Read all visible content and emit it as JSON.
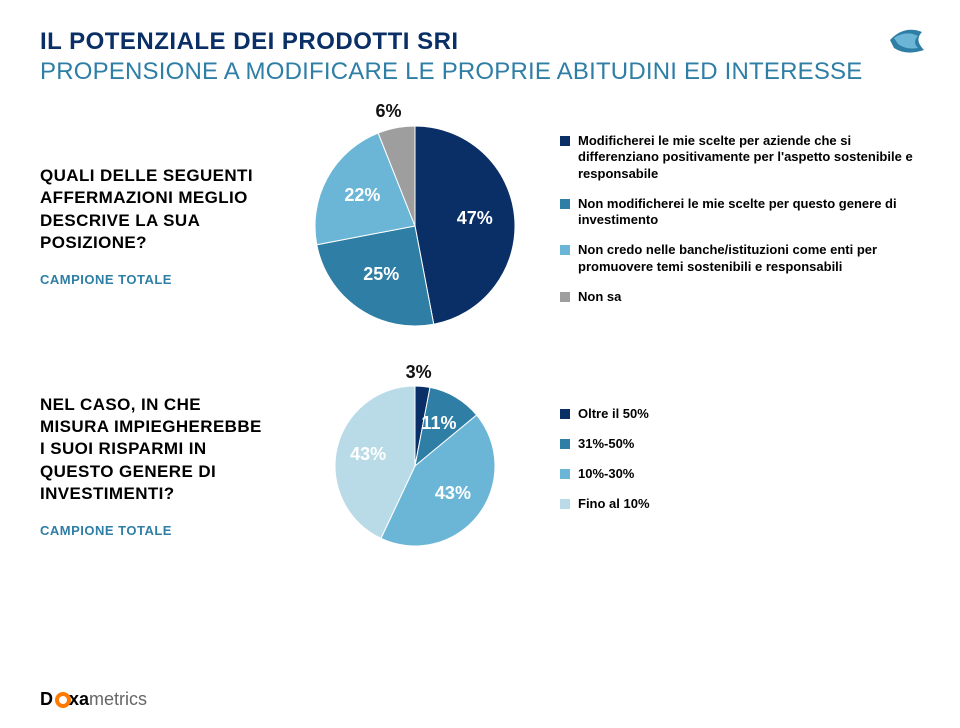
{
  "colors": {
    "navy": "#0a2f66",
    "teal": "#2e7ea5",
    "white": "#ffffff",
    "black": "#000000",
    "grey": "#9e9e9e"
  },
  "header": {
    "title_main": "IL POTENZIALE DEI PRODOTTI SRI",
    "title_sub": "PROPENSIONE A MODIFICARE LE PROPRIE ABITUDINI ED INTERESSE",
    "title_main_color": "#0a2f66",
    "title_sub_color": "#2e7ea5"
  },
  "q1": {
    "question": "QUALI DELLE SEGUENTI AFFERMAZIONI MEGLIO DESCRIVE LA SUA POSIZIONE?",
    "sample_label": "CAMPIONE TOTALE",
    "sample_color": "#2e7ea5",
    "chart": {
      "type": "pie",
      "radius": 100,
      "background_color": "#ffffff",
      "slices": [
        {
          "label": "47%",
          "value": 47,
          "color": "#0a2f66",
          "label_color": "#ffffff"
        },
        {
          "label": "25%",
          "value": 25,
          "color": "#2e7ea5",
          "label_color": "#ffffff"
        },
        {
          "label": "22%",
          "value": 22,
          "color": "#6bb6d6",
          "label_color": "#ffffff"
        },
        {
          "label": "6%",
          "value": 6,
          "color": "#9e9e9e",
          "label_color": "#111111"
        }
      ],
      "label_fontsize": 18
    },
    "legend": [
      {
        "color": "#0a2f66",
        "text": "Modificherei le mie scelte per aziende che si differenziano positivamente per l'aspetto sostenibile e responsabile"
      },
      {
        "color": "#2e7ea5",
        "text": "Non modificherei le mie scelte per questo genere di investimento"
      },
      {
        "color": "#6bb6d6",
        "text": "Non credo nelle banche/istituzioni come enti per promuovere temi sostenibili e responsabili"
      },
      {
        "color": "#9e9e9e",
        "text": "Non sa"
      }
    ]
  },
  "q2": {
    "question": "NEL CASO, IN CHE MISURA IMPIEGHEREBBE I SUOI RISPARMI IN QUESTO GENERE DI INVESTIMENTI?",
    "sample_label": "CAMPIONE TOTALE",
    "sample_color": "#2e7ea5",
    "chart": {
      "type": "pie",
      "radius": 80,
      "background_color": "#ffffff",
      "slices": [
        {
          "label": "3%",
          "value": 3,
          "color": "#0a2f66",
          "label_color": "#111111"
        },
        {
          "label": "11%",
          "value": 11,
          "color": "#2e7ea5",
          "label_color": "#ffffff"
        },
        {
          "label": "43%",
          "value": 43,
          "color": "#6bb6d6",
          "label_color": "#ffffff"
        },
        {
          "label": "43%",
          "value": 43,
          "color": "#b9dbe8",
          "label_color": "#ffffff"
        }
      ],
      "label_fontsize": 18
    },
    "legend": [
      {
        "color": "#0a2f66",
        "text": "Oltre il 50%"
      },
      {
        "color": "#2e7ea5",
        "text": "31%-50%"
      },
      {
        "color": "#6bb6d6",
        "text": "10%-30%"
      },
      {
        "color": "#b9dbe8",
        "text": "Fino al 10%"
      }
    ]
  },
  "footer": {
    "brand_doxa": "D",
    "brand_oxa": "xa",
    "brand_metrics": "metrics"
  }
}
